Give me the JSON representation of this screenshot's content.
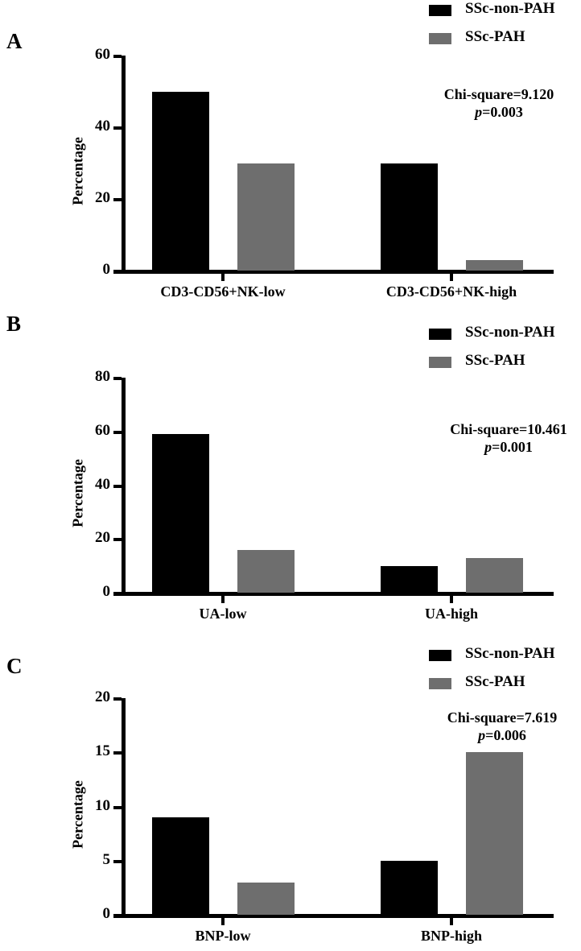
{
  "colors": {
    "non_pah": "#000000",
    "pah": "#6e6e6e"
  },
  "legend": [
    {
      "label": "SSc-non-PAH",
      "color": "#000000"
    },
    {
      "label": "SSc-PAH",
      "color": "#6e6e6e"
    }
  ],
  "panels": [
    {
      "letter": "A",
      "ylabel": "Percentage",
      "yticks": [
        "0",
        "20",
        "40",
        "60"
      ],
      "categories": [
        "CD3-CD56+NK-low",
        "CD3-CD56+NK-high"
      ],
      "stats": {
        "chi": "Chi-square=9.120",
        "p_prefix": "p",
        "p_value": "=0.003"
      }
    },
    {
      "letter": "B",
      "ylabel": "Percentage",
      "yticks": [
        "0",
        "20",
        "40",
        "60",
        "80"
      ],
      "categories": [
        "UA-low",
        "UA-high"
      ],
      "stats": {
        "chi": "Chi-square=10.461",
        "p_prefix": "p",
        "p_value": "=0.001"
      }
    },
    {
      "letter": "C",
      "ylabel": "Percentage",
      "yticks": [
        "0",
        "5",
        "10",
        "15",
        "20"
      ],
      "categories": [
        "BNP-low",
        "BNP-high"
      ],
      "stats": {
        "chi": "Chi-square=7.619",
        "p_prefix": "p",
        "p_value": "=0.006"
      }
    }
  ],
  "chart_data": [
    {
      "type": "bar",
      "title": "A",
      "xlabel": "",
      "ylabel": "Percentage",
      "categories": [
        "CD3-CD56+NK-low",
        "CD3-CD56+NK-high"
      ],
      "series": [
        {
          "name": "SSc-non-PAH",
          "values": [
            50,
            30
          ]
        },
        {
          "name": "SSc-PAH",
          "values": [
            30,
            3
          ]
        }
      ],
      "ylim": [
        0,
        60
      ],
      "yticks": [
        0,
        20,
        40,
        60
      ],
      "annotations": [
        "Chi-square=9.120",
        "p=0.003"
      ],
      "legend_position": "top-right",
      "grid": false
    },
    {
      "type": "bar",
      "title": "B",
      "xlabel": "",
      "ylabel": "Percentage",
      "categories": [
        "UA-low",
        "UA-high"
      ],
      "series": [
        {
          "name": "SSc-non-PAH",
          "values": [
            59,
            10
          ]
        },
        {
          "name": "SSc-PAH",
          "values": [
            16,
            13
          ]
        }
      ],
      "ylim": [
        0,
        80
      ],
      "yticks": [
        0,
        20,
        40,
        60,
        80
      ],
      "annotations": [
        "Chi-square=10.461",
        "p=0.001"
      ],
      "legend_position": "top-right",
      "grid": false
    },
    {
      "type": "bar",
      "title": "C",
      "xlabel": "",
      "ylabel": "Percentage",
      "categories": [
        "BNP-low",
        "BNP-high"
      ],
      "series": [
        {
          "name": "SSc-non-PAH",
          "values": [
            9,
            5
          ]
        },
        {
          "name": "SSc-PAH",
          "values": [
            3,
            15
          ]
        }
      ],
      "ylim": [
        0,
        20
      ],
      "yticks": [
        0,
        5,
        10,
        15,
        20
      ],
      "annotations": [
        "Chi-square=7.619",
        "p=0.006"
      ],
      "legend_position": "top-right",
      "grid": false
    }
  ]
}
